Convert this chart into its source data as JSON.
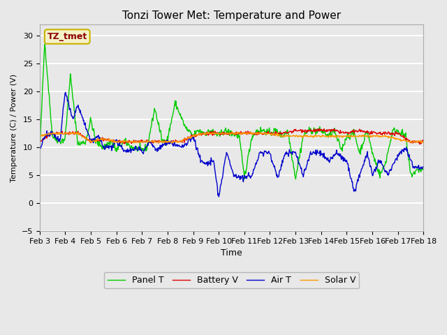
{
  "title": "Tonzi Tower Met: Temperature and Power",
  "xlabel": "Time",
  "ylabel": "Temperature (C) / Power (V)",
  "ylim": [
    -5,
    32
  ],
  "yticks": [
    -5,
    0,
    5,
    10,
    15,
    20,
    25,
    30
  ],
  "bg_color": "#e8e8e8",
  "plot_bg_color": "#e8e8e8",
  "grid_color": "white",
  "annotation_text": "TZ_tmet",
  "annotation_color": "#8b0000",
  "annotation_bg": "#f5f0c8",
  "annotation_border": "#c8b400",
  "line_colors": {
    "panel_t": "#00cc00",
    "battery_v": "#dd0000",
    "air_t": "#0000cc",
    "solar_v": "#ff9900"
  },
  "legend_labels": [
    "Panel T",
    "Battery V",
    "Air T",
    "Solar V"
  ],
  "xtick_labels": [
    "Feb 3",
    "Feb 4",
    "Feb 5",
    "Feb 6",
    "Feb 7",
    "Feb 8",
    "Feb 9",
    "Feb 10",
    "Feb 11",
    "Feb 12",
    "Feb 13",
    "Feb 14",
    "Feb 15",
    "Feb 16",
    "Feb 17",
    "Feb 18"
  ]
}
